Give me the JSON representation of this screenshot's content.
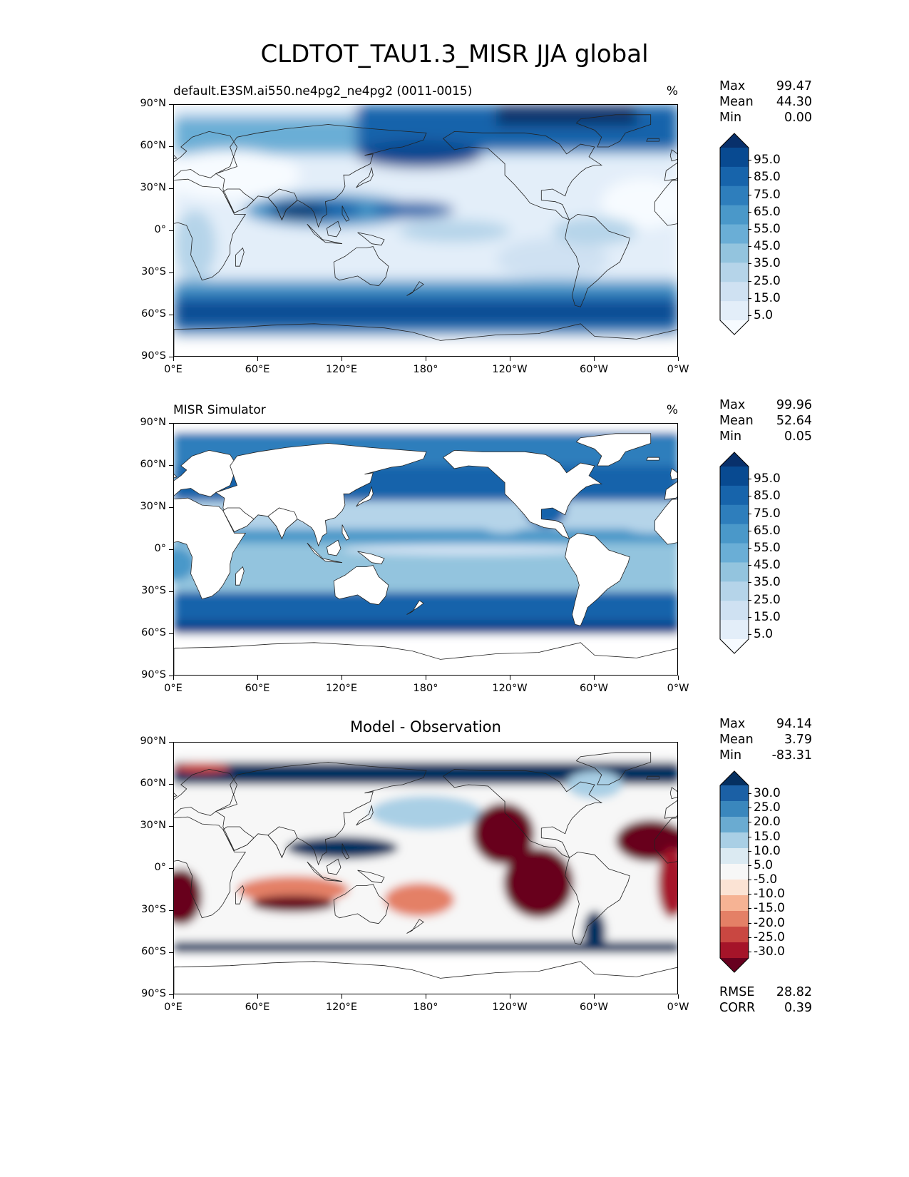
{
  "figure": {
    "title": "CLDTOT_TAU1.3_MISR JJA global"
  },
  "panels": [
    {
      "id": "model",
      "left_title": "default.E3SM.ai550.ne4pg2_ne4pg2 (0011-0015)",
      "center_title": "",
      "unit": "%",
      "stats": {
        "max_label": "Max",
        "max": "99.47",
        "mean_label": "Mean",
        "mean": "44.30",
        "min_label": "Min",
        "min": "0.00"
      },
      "colorbar": {
        "palette": "blues",
        "labels": [
          "95.0",
          "85.0",
          "75.0",
          "65.0",
          "55.0",
          "45.0",
          "35.0",
          "25.0",
          "15.0",
          "5.0"
        ]
      }
    },
    {
      "id": "obs",
      "left_title": "MISR Simulator",
      "center_title": "",
      "unit": "%",
      "stats": {
        "max_label": "Max",
        "max": "99.96",
        "mean_label": "Mean",
        "mean": "52.64",
        "min_label": "Min",
        "min": "0.05"
      },
      "colorbar": {
        "palette": "blues",
        "labels": [
          "95.0",
          "85.0",
          "75.0",
          "65.0",
          "55.0",
          "45.0",
          "35.0",
          "25.0",
          "15.0",
          "5.0"
        ]
      }
    },
    {
      "id": "diff",
      "left_title": "",
      "center_title": "Model - Observation",
      "unit": "",
      "stats": {
        "max_label": "Max",
        "max": "94.14",
        "mean_label": "Mean",
        "mean": "3.79",
        "min_label": "Min",
        "min": "-83.31"
      },
      "colorbar": {
        "palette": "rdbu",
        "labels": [
          "30.0",
          "25.0",
          "20.0",
          "15.0",
          "10.0",
          "5.0",
          "-5.0",
          "-10.0",
          "-15.0",
          "-20.0",
          "-25.0",
          "-30.0"
        ]
      },
      "metrics": {
        "rmse_label": "RMSE",
        "rmse": "28.82",
        "corr_label": "CORR",
        "corr": "0.39"
      }
    }
  ],
  "axes": {
    "lat_ticks": [
      "90°N",
      "60°N",
      "30°N",
      "0°",
      "30°S",
      "60°S",
      "90°S"
    ],
    "lon_ticks": [
      "0°E",
      "60°E",
      "120°E",
      "180°",
      "120°W",
      "60°W",
      "0°W"
    ]
  },
  "colors": {
    "blues": [
      "#f7fbff",
      "#e3eef9",
      "#cfe1f2",
      "#b5d4e9",
      "#93c4de",
      "#6aaed6",
      "#4a98c9",
      "#2e7ebc",
      "#1764ab",
      "#084a91",
      "#08306b"
    ],
    "rdbu": [
      "#67001f",
      "#a51429",
      "#c94741",
      "#e48066",
      "#f6b394",
      "#fbe3d4",
      "#f7f7f7",
      "#dbeaf2",
      "#a9cfe5",
      "#6aabd1",
      "#3a87bd",
      "#1b60a5",
      "#053061"
    ],
    "coast": "#222222"
  }
}
